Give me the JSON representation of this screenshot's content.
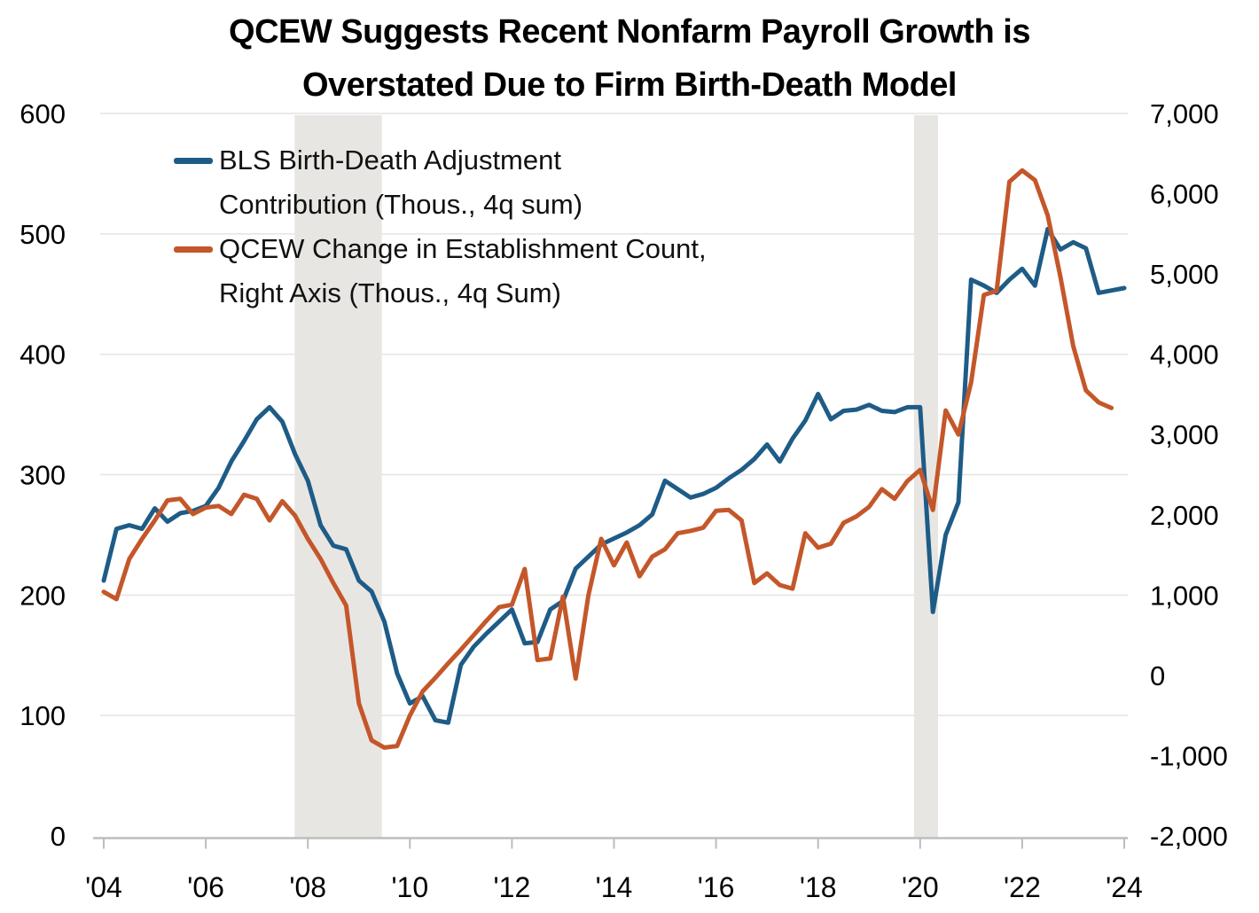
{
  "title": {
    "line1": "QCEW Suggests Recent Nonfarm Payroll Growth is",
    "line2": "Overstated Due to Firm Birth-Death Model"
  },
  "legend": [
    {
      "line1": "BLS Birth-Death Adjustment",
      "line2": "Contribution (Thous., 4q sum)",
      "color": "#1e5c87"
    },
    {
      "line1": "QCEW Change in Establishment Count,",
      "line2": "Right Axis (Thous., 4q Sum)",
      "color": "#c4572a"
    }
  ],
  "colors": {
    "background": "#ffffff",
    "blue_series": "#1e5c87",
    "orange_series": "#c4572a",
    "gridline": "#e3e3e3",
    "axis_line": "#bdbdbd",
    "recession_band": "#e8e6e3",
    "text": "#000000"
  },
  "chart_data": {
    "type": "line",
    "title": "QCEW Suggests Recent Nonfarm Payroll Growth is Overstated Due to Firm Birth-Death Model",
    "xlabel": "",
    "ylabel_left": "BLS Birth-Death Adjustment Contribution (Thous., 4q sum)",
    "ylabel_right": "QCEW Change in Establishment Count (Thous., 4q Sum)",
    "grid": "horizontal",
    "legend_position": "top-left-inside",
    "x_start": 2004.0,
    "x_step": 0.25,
    "x_ticks": [
      {
        "year": 2004,
        "label": "'04"
      },
      {
        "year": 2006,
        "label": "'06"
      },
      {
        "year": 2008,
        "label": "'08"
      },
      {
        "year": 2010,
        "label": "'10"
      },
      {
        "year": 2012,
        "label": "'12"
      },
      {
        "year": 2014,
        "label": "'14"
      },
      {
        "year": 2016,
        "label": "'16"
      },
      {
        "year": 2018,
        "label": "'18"
      },
      {
        "year": 2020,
        "label": "'20"
      },
      {
        "year": 2022,
        "label": "'22"
      },
      {
        "year": 2024,
        "label": "'24"
      }
    ],
    "left_axis": {
      "min": 0,
      "max": 600,
      "tick_step": 100,
      "ticks": [
        0,
        100,
        200,
        300,
        400,
        500,
        600
      ]
    },
    "right_axis": {
      "min": -2000,
      "max": 7000,
      "tick_step": 1000,
      "ticks": [
        -2000,
        -1000,
        0,
        1000,
        2000,
        3000,
        4000,
        5000,
        6000,
        7000
      ]
    },
    "recession_bands": [
      {
        "start": 2007.74,
        "end": 2009.45
      },
      {
        "start": 2019.88,
        "end": 2020.35
      }
    ],
    "series": [
      {
        "name": "BLS Birth-Death Adjustment Contribution (Thous., 4q sum)",
        "axis": "left",
        "color": "#1e5c87",
        "values": [
          212,
          255,
          258,
          255,
          272,
          261,
          268,
          270,
          274,
          289,
          311,
          328,
          346,
          356,
          344,
          317,
          295,
          258,
          241,
          238,
          212,
          203,
          178,
          135,
          110,
          116,
          96,
          94,
          142,
          157,
          168,
          178,
          188,
          160,
          161,
          188,
          195,
          222,
          232,
          242,
          247,
          252,
          258,
          267,
          295,
          288,
          281,
          284,
          289,
          297,
          304,
          313,
          325,
          311,
          330,
          345,
          367,
          346,
          353,
          354,
          358,
          353,
          352,
          356,
          356,
          186,
          250,
          277,
          462,
          457,
          451,
          462,
          471,
          457,
          504,
          487,
          493,
          488,
          451,
          453,
          455
        ]
      },
      {
        "name": "QCEW Change in Establishment Count, Right Axis (Thous., 4q Sum)",
        "axis": "right",
        "color": "#c4572a",
        "values": [
          1040,
          950,
          1450,
          1700,
          1930,
          2180,
          2200,
          2010,
          2090,
          2110,
          2010,
          2250,
          2200,
          1930,
          2170,
          1990,
          1700,
          1450,
          1150,
          870,
          -350,
          -810,
          -900,
          -880,
          -500,
          -200,
          -30,
          150,
          320,
          500,
          680,
          850,
          880,
          1325,
          190,
          210,
          980,
          -40,
          1000,
          1700,
          1370,
          1655,
          1235,
          1480,
          1570,
          1770,
          1800,
          1840,
          2050,
          2060,
          1930,
          1150,
          1270,
          1125,
          1080,
          1770,
          1590,
          1640,
          1900,
          1980,
          2100,
          2320,
          2200,
          2420,
          2560,
          2060,
          3300,
          3000,
          3650,
          4740,
          4790,
          6150,
          6290,
          6170,
          5730,
          4960,
          4100,
          3550,
          3400,
          3330
        ]
      }
    ]
  }
}
